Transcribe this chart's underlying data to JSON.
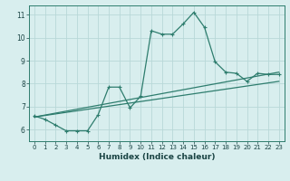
{
  "xlabel": "Humidex (Indice chaleur)",
  "bg_color": "#d8eeee",
  "line_color": "#2e7d6e",
  "grid_color": "#b8d8d8",
  "xlim": [
    -0.5,
    23.5
  ],
  "ylim": [
    5.5,
    11.4
  ],
  "xticks": [
    0,
    1,
    2,
    3,
    4,
    5,
    6,
    7,
    8,
    9,
    10,
    11,
    12,
    13,
    14,
    15,
    16,
    17,
    18,
    19,
    20,
    21,
    22,
    23
  ],
  "yticks": [
    6,
    7,
    8,
    9,
    10,
    11
  ],
  "line1_x": [
    0,
    1,
    2,
    3,
    4,
    5,
    6,
    7,
    8,
    9,
    10,
    11,
    12,
    13,
    14,
    15,
    16,
    17,
    18,
    19,
    20,
    21,
    22,
    23
  ],
  "line1_y": [
    6.6,
    6.45,
    6.2,
    5.95,
    5.95,
    5.95,
    6.65,
    7.85,
    7.85,
    6.95,
    7.45,
    10.3,
    10.15,
    10.15,
    10.6,
    11.1,
    10.45,
    8.95,
    8.5,
    8.45,
    8.1,
    8.45,
    8.4,
    8.4
  ],
  "line2_x": [
    0,
    23
  ],
  "line2_y": [
    6.55,
    8.1
  ],
  "line3_x": [
    0,
    23
  ],
  "line3_y": [
    6.55,
    8.5
  ],
  "tick_fontsize": 5.0,
  "xlabel_fontsize": 6.5
}
